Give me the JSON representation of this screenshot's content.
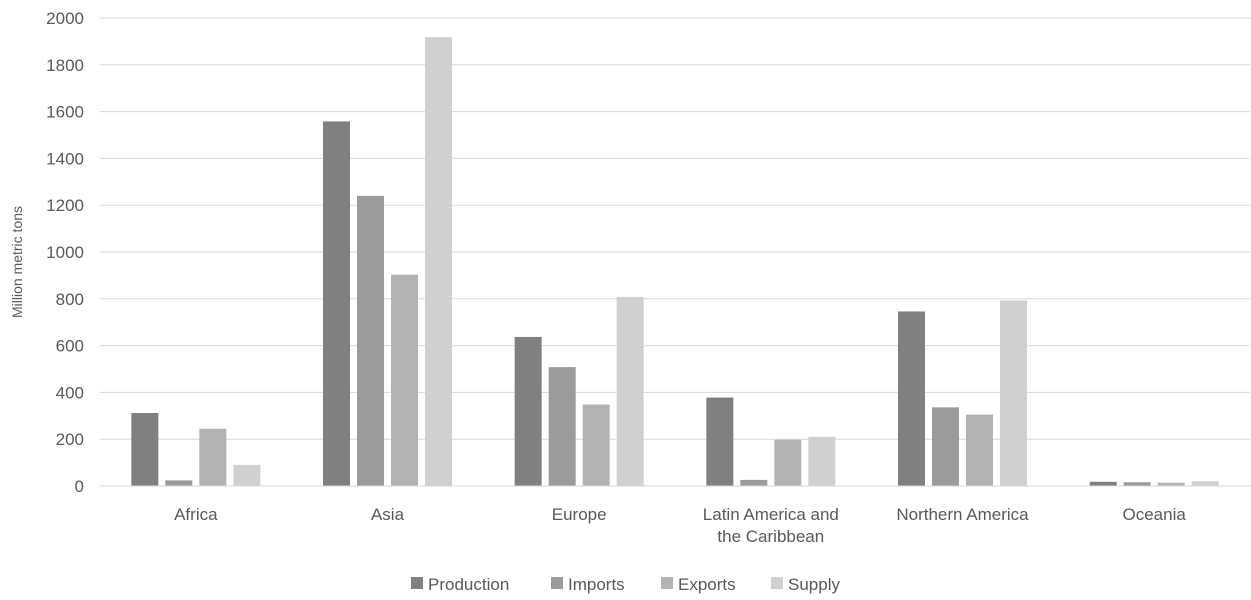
{
  "chart_data": {
    "type": "bar",
    "title": "",
    "xlabel": "",
    "ylabel": "Million metric tons",
    "ylim": [
      0,
      2000
    ],
    "yticks": [
      0,
      200,
      400,
      600,
      800,
      1000,
      1200,
      1400,
      1600,
      1800,
      2000
    ],
    "grid": true,
    "legend_position": "bottom",
    "categories": [
      [
        "Africa"
      ],
      [
        "Asia"
      ],
      [
        "Europe"
      ],
      [
        "Latin America and",
        "the Caribbean"
      ],
      [
        "Northern America"
      ],
      [
        "Oceania"
      ]
    ],
    "series": [
      {
        "name": "Production",
        "color": "#808080",
        "values": [
          312,
          1558,
          637,
          378,
          746,
          18
        ]
      },
      {
        "name": "Imports",
        "color": "#9b9b9b",
        "values": [
          24,
          1240,
          508,
          26,
          336,
          16
        ]
      },
      {
        "name": "Exports",
        "color": "#b3b3b3",
        "values": [
          245,
          903,
          348,
          198,
          305,
          14
        ]
      },
      {
        "name": "Supply",
        "color": "#d0d0d0",
        "values": [
          90,
          1918,
          808,
          210,
          793,
          20
        ]
      }
    ]
  }
}
